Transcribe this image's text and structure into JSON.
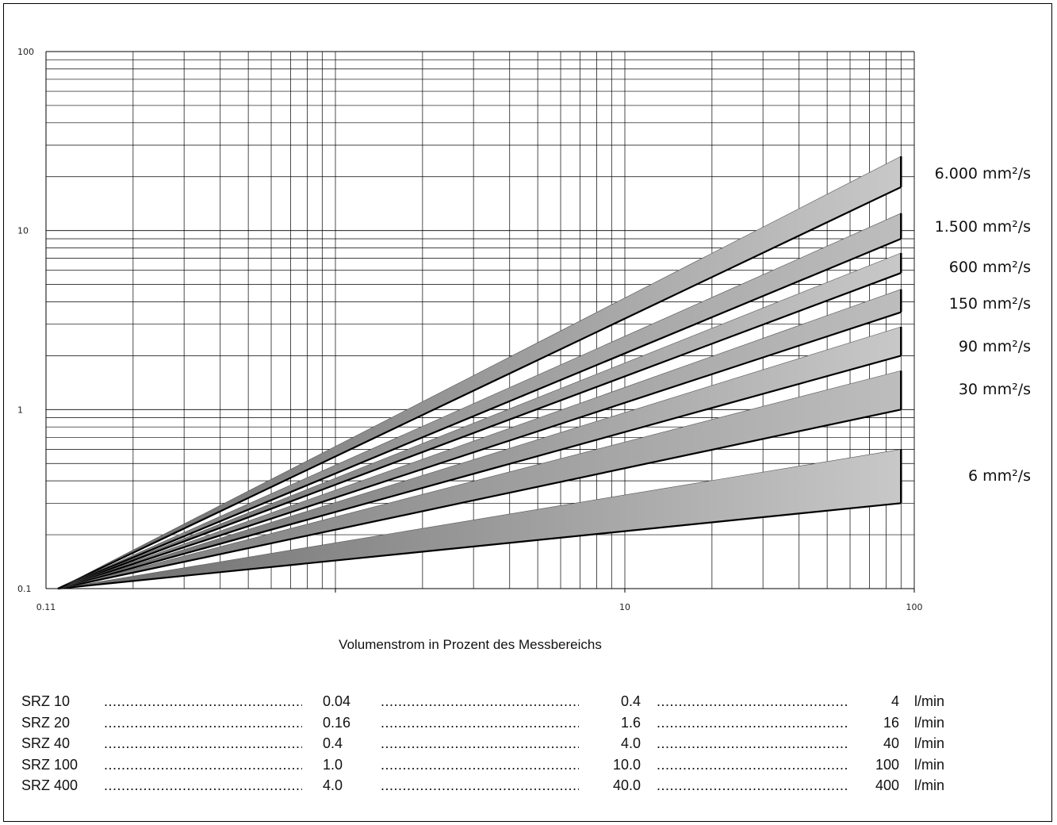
{
  "chart_data": {
    "type": "area",
    "xscale": "log",
    "yscale": "log",
    "xlim": [
      0.11,
      100
    ],
    "ylim": [
      0.1,
      100
    ],
    "x_tick_labels": [
      "0.11",
      "10",
      "100"
    ],
    "y_tick_labels": [
      "100",
      "10",
      "1",
      "0.1"
    ],
    "xlabel": "Volumenstrom in Prozent des Messbereichs",
    "ylabel": "",
    "grid": true,
    "series": [
      {
        "name": "6.000 mm²/s",
        "x": [
          0.11,
          90
        ],
        "lower": [
          0.1,
          17.5
        ],
        "upper": [
          0.1,
          26
        ]
      },
      {
        "name": "1.500 mm²/s",
        "x": [
          0.11,
          90
        ],
        "lower": [
          0.1,
          9.0
        ],
        "upper": [
          0.1,
          12.5
        ]
      },
      {
        "name": "600 mm²/s",
        "x": [
          0.11,
          90
        ],
        "lower": [
          0.1,
          5.8
        ],
        "upper": [
          0.1,
          7.5
        ]
      },
      {
        "name": "150 mm²/s",
        "x": [
          0.11,
          90
        ],
        "lower": [
          0.1,
          3.5
        ],
        "upper": [
          0.1,
          4.7
        ]
      },
      {
        "name": "90 mm²/s",
        "x": [
          0.11,
          90
        ],
        "lower": [
          0.1,
          2.0
        ],
        "upper": [
          0.1,
          2.9
        ]
      },
      {
        "name": "30 mm²/s",
        "x": [
          0.11,
          90
        ],
        "lower": [
          0.1,
          1.0
        ],
        "upper": [
          0.1,
          1.65
        ]
      },
      {
        "name": "6 mm²/s",
        "x": [
          0.11,
          90
        ],
        "lower": [
          0.1,
          0.3
        ],
        "upper": [
          0.1,
          0.6
        ]
      }
    ]
  },
  "table": {
    "rows": [
      {
        "model": "SRZ 10",
        "v1": "0.04",
        "v2": "0.4",
        "v3": "4",
        "unit": "l/min"
      },
      {
        "model": "SRZ 20",
        "v1": "0.16",
        "v2": "1.6",
        "v3": "16",
        "unit": "l/min"
      },
      {
        "model": "SRZ 40",
        "v1": "0.4",
        "v2": "4.0",
        "v3": "40",
        "unit": "l/min"
      },
      {
        "model": "SRZ 100",
        "v1": "1.0",
        "v2": "10.0",
        "v3": "100",
        "unit": "l/min"
      },
      {
        "model": "SRZ 400",
        "v1": "4.0",
        "v2": "40.0",
        "v3": "400",
        "unit": "l/min"
      }
    ]
  }
}
